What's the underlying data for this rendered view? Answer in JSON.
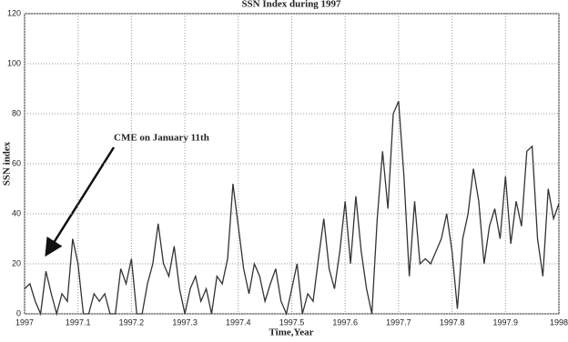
{
  "chart_data": {
    "type": "line",
    "title": "SSN Index during 1997",
    "x_label": "Time,Year",
    "y_label": "SSN index",
    "annotation": "CME on January 11th",
    "x": [
      1997,
      1997.01,
      1997.02,
      1997.03,
      1997.04,
      1997.05,
      1997.06,
      1997.07,
      1997.08,
      1997.09,
      1997.1,
      1997.11,
      1997.12,
      1997.13,
      1997.14,
      1997.15,
      1997.16,
      1997.17,
      1997.18,
      1997.19,
      1997.2,
      1997.21,
      1997.22,
      1997.23,
      1997.24,
      1997.25,
      1997.26,
      1997.27,
      1997.28,
      1997.29,
      1997.3,
      1997.31,
      1997.32,
      1997.33,
      1997.34,
      1997.35,
      1997.36,
      1997.37,
      1997.38,
      1997.39,
      1997.4,
      1997.41,
      1997.42,
      1997.43,
      1997.44,
      1997.45,
      1997.46,
      1997.47,
      1997.48,
      1997.49,
      1997.5,
      1997.51,
      1997.52,
      1997.53,
      1997.54,
      1997.55,
      1997.56,
      1997.57,
      1997.58,
      1997.59,
      1997.6,
      1997.61,
      1997.62,
      1997.63,
      1997.64,
      1997.65,
      1997.66,
      1997.67,
      1997.68,
      1997.69,
      1997.7,
      1997.71,
      1997.72,
      1997.73,
      1997.74,
      1997.75,
      1997.76,
      1997.77,
      1997.78,
      1997.79,
      1997.8,
      1997.81,
      1997.82,
      1997.83,
      1997.84,
      1997.85,
      1997.86,
      1997.87,
      1997.88,
      1997.89,
      1997.9,
      1997.91,
      1997.92,
      1997.93,
      1997.94,
      1997.95,
      1997.96,
      1997.97,
      1997.98,
      1997.99,
      1998
    ],
    "series": [
      {
        "name": "SSN",
        "color": "#333333",
        "values": [
          10,
          12,
          5,
          0,
          17,
          8,
          0,
          8,
          5,
          30,
          20,
          0,
          0,
          8,
          5,
          8,
          0,
          0,
          18,
          12,
          22,
          0,
          0,
          12,
          20,
          36,
          20,
          15,
          27,
          10,
          0,
          10,
          15,
          5,
          10,
          0,
          15,
          12,
          22,
          52,
          35,
          18,
          8,
          20,
          15,
          5,
          12,
          18,
          5,
          0,
          10,
          20,
          0,
          8,
          5,
          22,
          38,
          18,
          10,
          25,
          45,
          20,
          47,
          25,
          10,
          0,
          38,
          65,
          42,
          80,
          85,
          55,
          15,
          45,
          20,
          22,
          20,
          25,
          30,
          40,
          25,
          2,
          30,
          40,
          58,
          45,
          20,
          35,
          42,
          30,
          55,
          28,
          45,
          35,
          65,
          67,
          30,
          15,
          50,
          38,
          44
        ]
      }
    ],
    "xlim": [
      1997,
      1998
    ],
    "xticks": [
      1997,
      1997.1,
      1997.2,
      1997.3,
      1997.4,
      1997.5,
      1997.6,
      1997.7,
      1997.8,
      1997.9,
      1998
    ],
    "ylim": [
      0,
      120
    ],
    "yticks": [
      0,
      20,
      40,
      60,
      80,
      100,
      120
    ],
    "grid": true
  }
}
